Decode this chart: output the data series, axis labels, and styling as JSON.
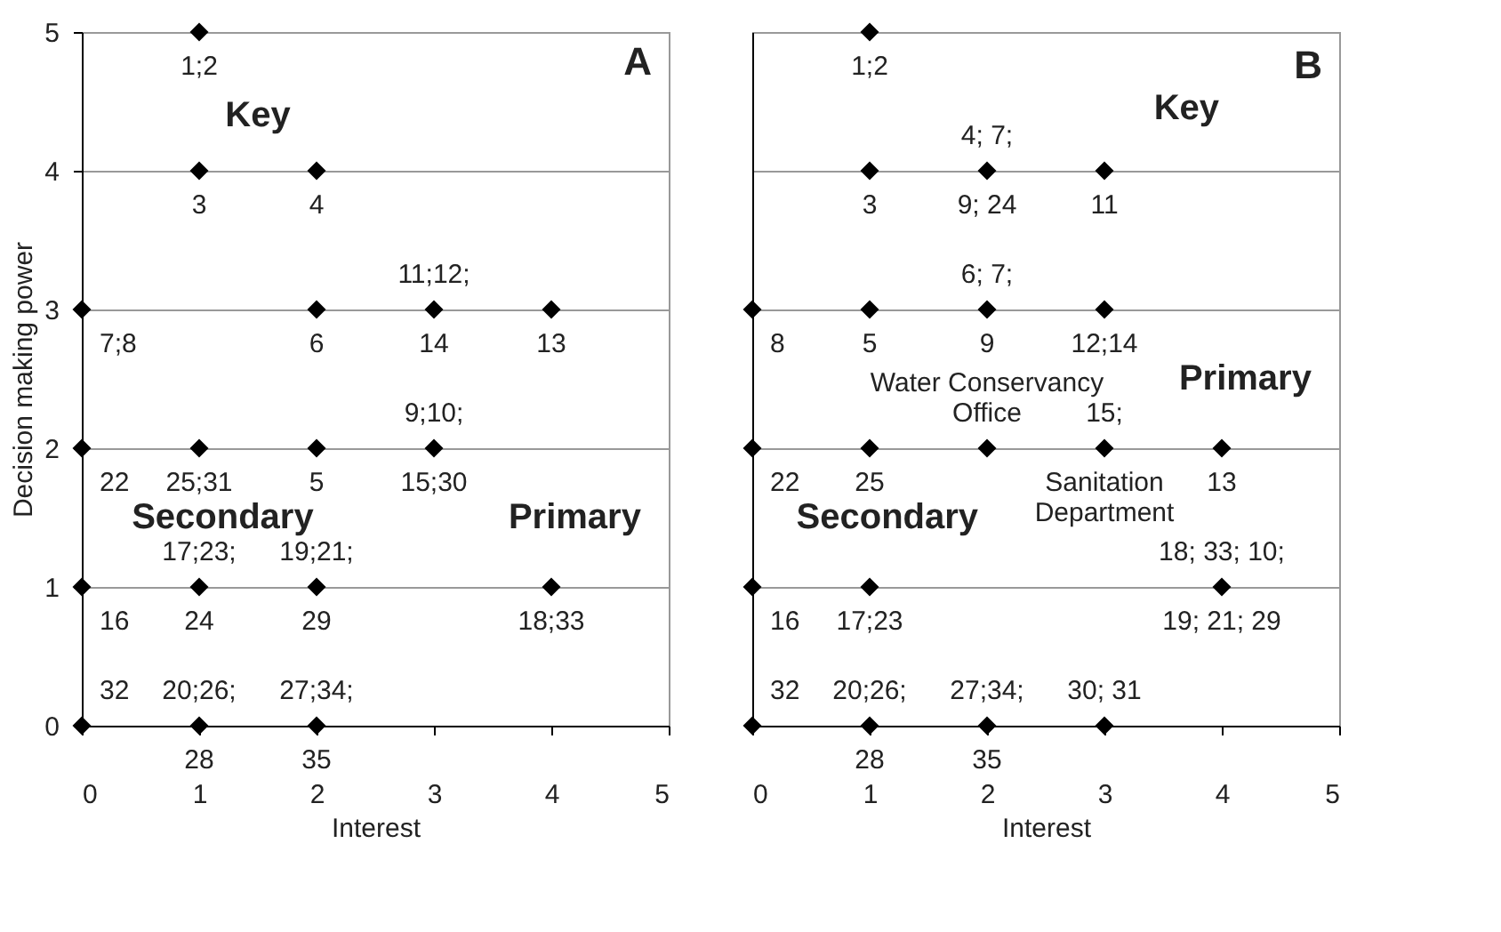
{
  "chart_data": [
    {
      "type": "scatter",
      "title": "A",
      "xlabel": "Interest",
      "ylabel": "Decision making power",
      "xlim": [
        0,
        5
      ],
      "ylim": [
        0,
        5
      ],
      "xticks": [
        0,
        1,
        2,
        3,
        4,
        5
      ],
      "yticks": [
        0,
        1,
        2,
        3,
        4,
        5
      ],
      "grid": "y",
      "marker": "diamond",
      "series": [
        {
          "color": "#000000",
          "x": [
            1,
            1,
            2,
            0,
            2,
            3,
            4,
            0,
            1,
            2,
            3,
            0,
            1,
            2,
            4,
            0,
            1,
            2
          ],
          "values": [
            5,
            4,
            4,
            3,
            3,
            3,
            3,
            2,
            2,
            2,
            2,
            1,
            1,
            1,
            1,
            0,
            0,
            0
          ]
        }
      ],
      "annotations": [
        "Key",
        "Secondary",
        "Primary",
        {
          "text": "1;2",
          "x": 1,
          "y": 5
        },
        {
          "text": "3",
          "x": 1,
          "y": 4
        },
        {
          "text": "4",
          "x": 2,
          "y": 4
        },
        {
          "text": "11;12;",
          "x": 3,
          "y": 3
        },
        {
          "text": "14",
          "x": 3,
          "y": 3
        },
        {
          "text": "7;8",
          "x": 0,
          "y": 3
        },
        {
          "text": "6",
          "x": 2,
          "y": 3
        },
        {
          "text": "13",
          "x": 4,
          "y": 3
        },
        {
          "text": "9;10;",
          "x": 3,
          "y": 2
        },
        {
          "text": "15;30",
          "x": 3,
          "y": 2
        },
        {
          "text": "22",
          "x": 0,
          "y": 2
        },
        {
          "text": "25;31",
          "x": 1,
          "y": 2
        },
        {
          "text": "5",
          "x": 2,
          "y": 2
        },
        {
          "text": "17;23;",
          "x": 1,
          "y": 1
        },
        {
          "text": "24",
          "x": 1,
          "y": 1
        },
        {
          "text": "19;21;",
          "x": 2,
          "y": 1
        },
        {
          "text": "29",
          "x": 2,
          "y": 1
        },
        {
          "text": "16",
          "x": 0,
          "y": 1
        },
        {
          "text": "18;33",
          "x": 4,
          "y": 1
        },
        {
          "text": "32",
          "x": 0,
          "y": 0
        },
        {
          "text": "20;26;",
          "x": 1,
          "y": 0
        },
        {
          "text": "28",
          "x": 1,
          "y": 0
        },
        {
          "text": "27;34;",
          "x": 2,
          "y": 0
        },
        {
          "text": "35",
          "x": 2,
          "y": 0
        }
      ]
    },
    {
      "type": "scatter",
      "title": "B",
      "xlabel": "Interest",
      "xlim": [
        0,
        5
      ],
      "ylim": [
        0,
        5
      ],
      "xticks": [
        0,
        1,
        2,
        3,
        4,
        5
      ],
      "yticks": [
        0,
        1,
        2,
        3,
        4,
        5
      ],
      "grid": "y",
      "marker": "diamond",
      "tick_labels": "x",
      "series": [
        {
          "color": "#000000",
          "x": [
            1,
            1,
            2,
            3,
            0,
            1,
            2,
            3,
            0,
            1,
            2,
            3,
            4,
            0,
            1,
            4,
            0,
            1,
            2,
            3
          ],
          "values": [
            5,
            4,
            4,
            4,
            3,
            3,
            3,
            3,
            2,
            2,
            2,
            2,
            2,
            1,
            1,
            1,
            0,
            0,
            0,
            0
          ]
        }
      ],
      "annotations": [
        "Key",
        "Primary",
        "Secondary",
        {
          "text": "1;2",
          "x": 1,
          "y": 5
        },
        {
          "text": "4; 7;",
          "x": 2,
          "y": 4
        },
        {
          "text": "9; 24",
          "x": 2,
          "y": 4
        },
        {
          "text": "3",
          "x": 1,
          "y": 4
        },
        {
          "text": "11",
          "x": 3,
          "y": 4
        },
        {
          "text": "6; 7;",
          "x": 2,
          "y": 3
        },
        {
          "text": "9",
          "x": 2,
          "y": 3
        },
        {
          "text": "Water Conservancy\nOffice",
          "x": 2,
          "y": 3
        },
        {
          "text": "8",
          "x": 0,
          "y": 3
        },
        {
          "text": "5",
          "x": 1,
          "y": 3
        },
        {
          "text": "12;14",
          "x": 3,
          "y": 3
        },
        {
          "text": "15;",
          "x": 3,
          "y": 2
        },
        {
          "text": "Sanitation\nDepartment",
          "x": 3,
          "y": 2
        },
        {
          "text": "22",
          "x": 0,
          "y": 2
        },
        {
          "text": "25",
          "x": 1,
          "y": 2
        },
        {
          "text": "13",
          "x": 4,
          "y": 2
        },
        {
          "text": "18; 33; 10;",
          "x": 4,
          "y": 1
        },
        {
          "text": "19; 21; 29",
          "x": 4,
          "y": 1
        },
        {
          "text": "16",
          "x": 0,
          "y": 1
        },
        {
          "text": "17;23",
          "x": 1,
          "y": 1
        },
        {
          "text": "32",
          "x": 0,
          "y": 0
        },
        {
          "text": "20;26;",
          "x": 1,
          "y": 0
        },
        {
          "text": "28",
          "x": 1,
          "y": 0
        },
        {
          "text": "27;34;",
          "x": 2,
          "y": 0
        },
        {
          "text": "35",
          "x": 2,
          "y": 0
        },
        {
          "text": "30; 31",
          "x": 3,
          "y": 0
        }
      ]
    }
  ]
}
